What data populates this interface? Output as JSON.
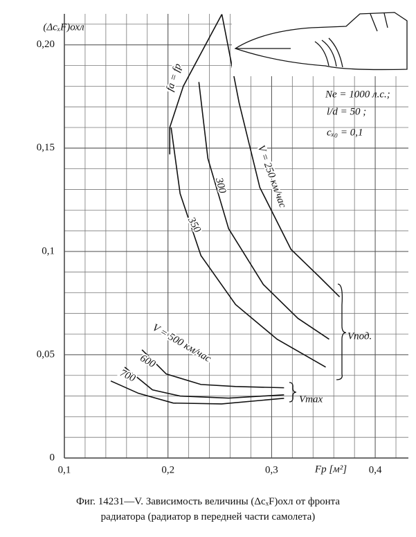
{
  "chart_data": {
    "type": "line",
    "y_label": "(ΔcₓF)охл",
    "x_label": "Fр [м²]",
    "xlim": [
      0.1,
      0.432
    ],
    "ylim": [
      0,
      0.215
    ],
    "xticks": [
      {
        "value": 0.1,
        "label": "0,1"
      },
      {
        "value": 0.2,
        "label": "0,2"
      },
      {
        "value": 0.3,
        "label": "0,3"
      },
      {
        "value": 0.4,
        "label": "0,4"
      }
    ],
    "yticks": [
      0,
      {
        "value": 0.05,
        "label": "0,05"
      },
      {
        "value": 0.1,
        "label": "0,1"
      },
      {
        "value": 0.15,
        "label": "0,15"
      },
      {
        "value": 0.2,
        "label": "0,20"
      }
    ],
    "grid": true,
    "color": "#111",
    "series": [
      {
        "name": "fa = fр",
        "x": [
          0.2017,
          0.2017,
          0.2148,
          0.252
        ],
        "values": [
          0.147,
          0.16,
          0.18,
          0.2148
        ]
      },
      {
        "name": "V = 250 км/час",
        "x": [
          0.252,
          0.2686,
          0.2886,
          0.3187,
          0.3455,
          0.3656
        ],
        "values": [
          0.2148,
          0.172,
          0.131,
          0.101,
          0.088,
          0.078
        ]
      },
      {
        "name": "300",
        "x": [
          0.2298,
          0.2385,
          0.2585,
          0.292,
          0.3254,
          0.3555
        ],
        "values": [
          0.182,
          0.145,
          0.111,
          0.084,
          0.0676,
          0.0575
        ]
      },
      {
        "name": "350",
        "x": [
          0.203,
          0.2117,
          0.2318,
          0.2652,
          0.3053,
          0.3522
        ],
        "values": [
          0.16,
          0.128,
          0.098,
          0.0743,
          0.0575,
          0.044
        ]
      },
      {
        "name": "V = 500 км/час",
        "x": [
          0.1749,
          0.1983,
          0.2318,
          0.2652,
          0.312
        ],
        "values": [
          0.0524,
          0.0407,
          0.0356,
          0.0346,
          0.034
        ]
      },
      {
        "name": "600",
        "x": [
          0.1582,
          0.185,
          0.2117,
          0.2585,
          0.312
        ],
        "values": [
          0.044,
          0.033,
          0.03,
          0.029,
          0.0306
        ]
      },
      {
        "name": "700",
        "x": [
          0.1448,
          0.1716,
          0.205,
          0.2518,
          0.312
        ],
        "values": [
          0.0373,
          0.0313,
          0.0266,
          0.0262,
          0.0289
        ]
      }
    ],
    "annotations": [
      "Ne = 1000 л.с.;",
      "l/d = 50 ;",
      "cₓ₀ = 0,1",
      "Vпод.",
      "Vmax"
    ],
    "caption": [
      "Фиг. 14231—V. Зависимость величины (ΔcₓF)охл от фронта",
      "радиатора (радиатор в передней части самолета)"
    ]
  }
}
